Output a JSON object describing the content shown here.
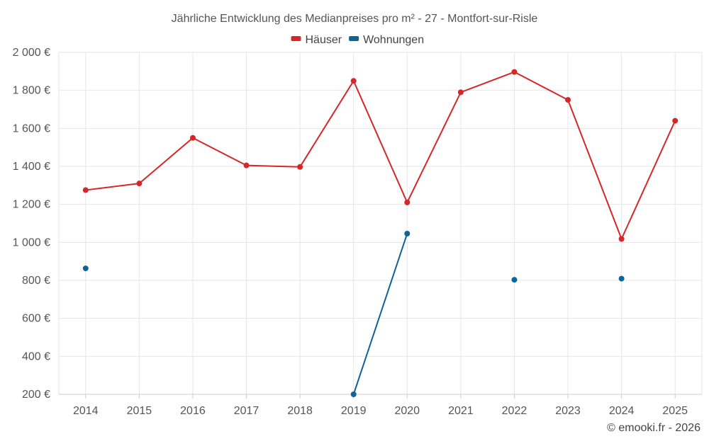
{
  "chart_data": {
    "type": "line",
    "title": "Jährliche Entwicklung des Medianpreises pro m² - 27 - Montfort-sur-Risle",
    "categories": [
      "2014",
      "2015",
      "2016",
      "2017",
      "2018",
      "2019",
      "2020",
      "2021",
      "2022",
      "2023",
      "2024",
      "2025"
    ],
    "ylim": [
      200,
      2000
    ],
    "yticks": [
      200,
      400,
      600,
      800,
      1000,
      1200,
      1400,
      1600,
      1800,
      2000
    ],
    "ytick_labels": [
      "200 €",
      "400 €",
      "600 €",
      "800 €",
      "1 000 €",
      "1 200 €",
      "1 400 €",
      "1 600 €",
      "1 800 €",
      "2 000 €"
    ],
    "legend_position": "top-center",
    "grid": true,
    "series": [
      {
        "name": "Häuser",
        "color": "#d62728",
        "values": [
          1275,
          1310,
          1550,
          1405,
          1397,
          1850,
          1210,
          1790,
          1897,
          1750,
          1018,
          1640
        ]
      },
      {
        "name": "Wohnungen",
        "color": "#0d6499",
        "values": [
          863,
          null,
          null,
          null,
          null,
          200,
          1046,
          null,
          803,
          null,
          809,
          null
        ]
      }
    ]
  },
  "footer": {
    "credit": "© emooki.fr - 2026"
  }
}
